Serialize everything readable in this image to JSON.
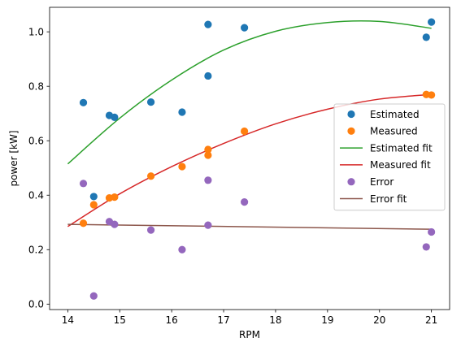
{
  "chart_data": {
    "type": "scatter",
    "title": "",
    "xlabel": "RPM",
    "ylabel": "power [kW]",
    "xlim": [
      13.65,
      21.35
    ],
    "ylim": [
      -0.02,
      1.09
    ],
    "xticks": [
      14,
      15,
      16,
      17,
      18,
      19,
      20,
      21
    ],
    "xtick_labels": [
      "14",
      "15",
      "16",
      "17",
      "18",
      "19",
      "20",
      "21"
    ],
    "yticks": [
      0.0,
      0.2,
      0.4,
      0.6,
      0.8,
      1.0
    ],
    "ytick_labels": [
      "0.0",
      "0.2",
      "0.4",
      "0.6",
      "0.8",
      "1.0"
    ],
    "grid": false,
    "legend_position": "center-right",
    "series": [
      {
        "name": "Estimated",
        "kind": "scatter",
        "color": "#1f77b4",
        "x": [
          14.3,
          14.5,
          14.8,
          14.9,
          15.6,
          16.2,
          16.7,
          16.7,
          17.4,
          20.9,
          21.0
        ],
        "y": [
          0.74,
          0.395,
          0.693,
          0.686,
          0.742,
          0.705,
          1.027,
          0.838,
          1.015,
          0.98,
          1.036
        ]
      },
      {
        "name": "Measured",
        "kind": "scatter",
        "color": "#ff7f0e",
        "x": [
          14.3,
          14.5,
          14.8,
          14.9,
          15.6,
          16.2,
          16.7,
          16.7,
          17.4,
          20.9,
          21.0
        ],
        "y": [
          0.297,
          0.365,
          0.39,
          0.393,
          0.47,
          0.505,
          0.568,
          0.547,
          0.635,
          0.77,
          0.768
        ]
      },
      {
        "name": "Estimated fit",
        "kind": "line",
        "color": "#2ca02c",
        "x": [
          14,
          15,
          16,
          17,
          18,
          19,
          20,
          21
        ],
        "y": [
          0.515,
          0.683,
          0.823,
          0.933,
          1.002,
          1.034,
          1.038,
          1.013
        ]
      },
      {
        "name": "Measured fit",
        "kind": "line",
        "color": "#d62728",
        "x": [
          14,
          15,
          16,
          17,
          18,
          19,
          20,
          21
        ],
        "y": [
          0.285,
          0.405,
          0.505,
          0.59,
          0.662,
          0.716,
          0.753,
          0.77
        ]
      },
      {
        "name": "Error",
        "kind": "scatter",
        "color": "#9467bd",
        "x": [
          14.3,
          14.5,
          14.8,
          14.9,
          15.6,
          16.2,
          16.7,
          16.7,
          17.4,
          20.9,
          21.0
        ],
        "y": [
          0.443,
          0.03,
          0.303,
          0.293,
          0.272,
          0.2,
          0.455,
          0.29,
          0.375,
          0.21,
          0.265
        ]
      },
      {
        "name": "Error fit",
        "kind": "line",
        "color": "#8c564b",
        "x": [
          14,
          21
        ],
        "y": [
          0.293,
          0.275
        ]
      }
    ]
  }
}
